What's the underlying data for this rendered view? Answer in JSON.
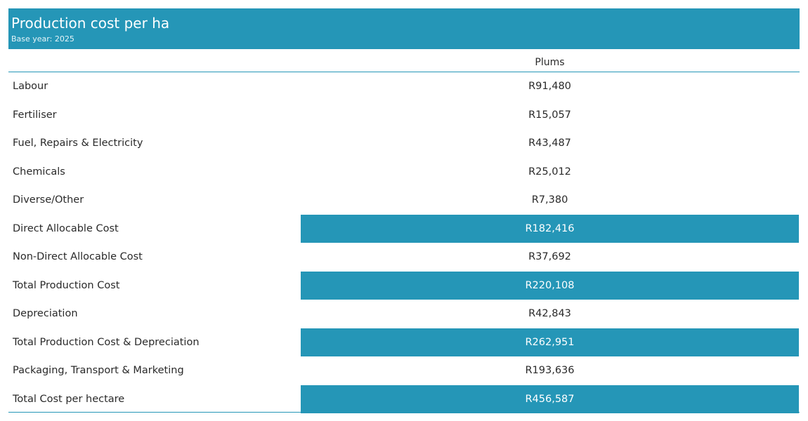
{
  "header": {
    "title": "Production cost per ha",
    "subtitle": "Base year: 2025"
  },
  "colors": {
    "accent": "#2596b7",
    "text": "#2a2a2a",
    "highlight_text": "#ffffff"
  },
  "chart_data": {
    "type": "table",
    "title": "Production cost per ha",
    "subtitle": "Base year: 2025",
    "columns": [
      "Plums"
    ],
    "rows": [
      {
        "label": "Labour",
        "value": "R91,480",
        "highlight": false
      },
      {
        "label": "Fertiliser",
        "value": "R15,057",
        "highlight": false
      },
      {
        "label": "Fuel, Repairs & Electricity",
        "value": "R43,487",
        "highlight": false
      },
      {
        "label": "Chemicals",
        "value": "R25,012",
        "highlight": false
      },
      {
        "label": "Diverse/Other",
        "value": "R7,380",
        "highlight": false
      },
      {
        "label": "Direct Allocable Cost",
        "value": "R182,416",
        "highlight": true
      },
      {
        "label": "Non-Direct Allocable Cost",
        "value": "R37,692",
        "highlight": false
      },
      {
        "label": "Total Production Cost",
        "value": "R220,108",
        "highlight": true
      },
      {
        "label": "Depreciation",
        "value": "R42,843",
        "highlight": false
      },
      {
        "label": "Total Production Cost & Depreciation",
        "value": "R262,951",
        "highlight": true
      },
      {
        "label": "Packaging, Transport & Marketing",
        "value": "R193,636",
        "highlight": false
      },
      {
        "label": "Total Cost per hectare",
        "value": "R456,587",
        "highlight": true
      }
    ]
  }
}
